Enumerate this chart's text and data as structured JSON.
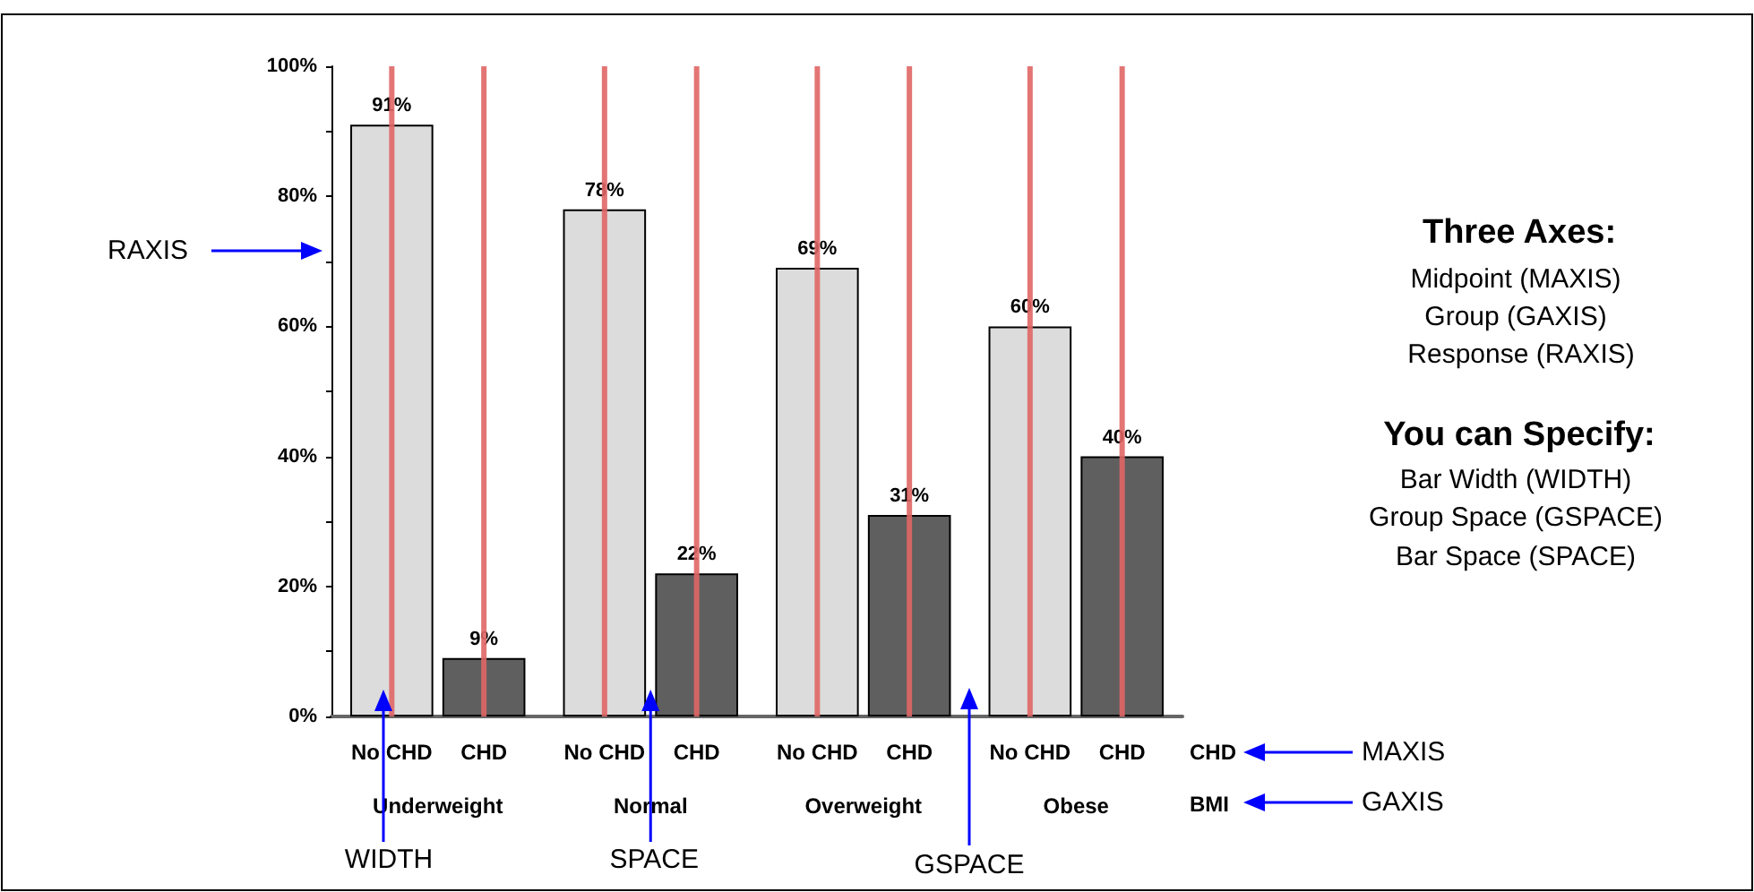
{
  "chart_data": {
    "type": "bar",
    "categories": [
      "Underweight",
      "Normal",
      "Overweight",
      "Obese"
    ],
    "series": [
      {
        "name": "No CHD",
        "color": "#dcdcdc",
        "values": [
          91,
          78,
          69,
          60
        ],
        "value_labels": [
          "91%",
          "78%",
          "69%",
          "60%"
        ]
      },
      {
        "name": "CHD",
        "color": "#5f5f5f",
        "values": [
          9,
          22,
          31,
          40
        ],
        "value_labels": [
          "9%",
          "22%",
          "31%",
          "40%"
        ]
      }
    ],
    "xlabel": "BMI",
    "legend_title": "CHD",
    "ylim": [
      0,
      100
    ],
    "yticks": [
      {
        "value": 0,
        "label": "0%"
      },
      {
        "value": 10,
        "label": null
      },
      {
        "value": 20,
        "label": "20%"
      },
      {
        "value": 30,
        "label": null
      },
      {
        "value": 40,
        "label": "40%"
      },
      {
        "value": 50,
        "label": null
      },
      {
        "value": 60,
        "label": "60%"
      },
      {
        "value": 70,
        "label": null
      },
      {
        "value": 80,
        "label": "80%"
      },
      {
        "value": 90,
        "label": null
      },
      {
        "value": 100,
        "label": "100%"
      }
    ],
    "ref_lines": [
      {
        "axis": "x",
        "value": "Underweight",
        "color": "#e06666"
      },
      {
        "axis": "x",
        "value": "Underweight",
        "color": "#e06666"
      },
      {
        "axis": "x",
        "value": "Normal",
        "color": "#e06666"
      },
      {
        "axis": "x",
        "value": "Normal",
        "color": "#e06666"
      },
      {
        "axis": "x",
        "value": "Overweight",
        "color": "#e06666"
      },
      {
        "axis": "x",
        "value": "Overweight",
        "color": "#e06666"
      },
      {
        "axis": "x",
        "value": "Obese",
        "color": "#e06666"
      },
      {
        "axis": "x",
        "value": "Obese",
        "color": "#e06666"
      }
    ],
    "annotations": [
      "RAXIS",
      {
        "text": "WIDTH",
        "y": 0
      },
      {
        "text": "SPACE",
        "x": "Normal",
        "y": 0
      },
      "GSPACE",
      "MAXIS",
      "GAXIS",
      "Three Axes:",
      "Midpoint (MAXIS)",
      "Group (GAXIS)",
      "Response (RAXIS)",
      "You can Specify:",
      "Bar Width (WIDTH)",
      "Group Space (GSPACE)",
      "Bar Space (SPACE)"
    ]
  }
}
